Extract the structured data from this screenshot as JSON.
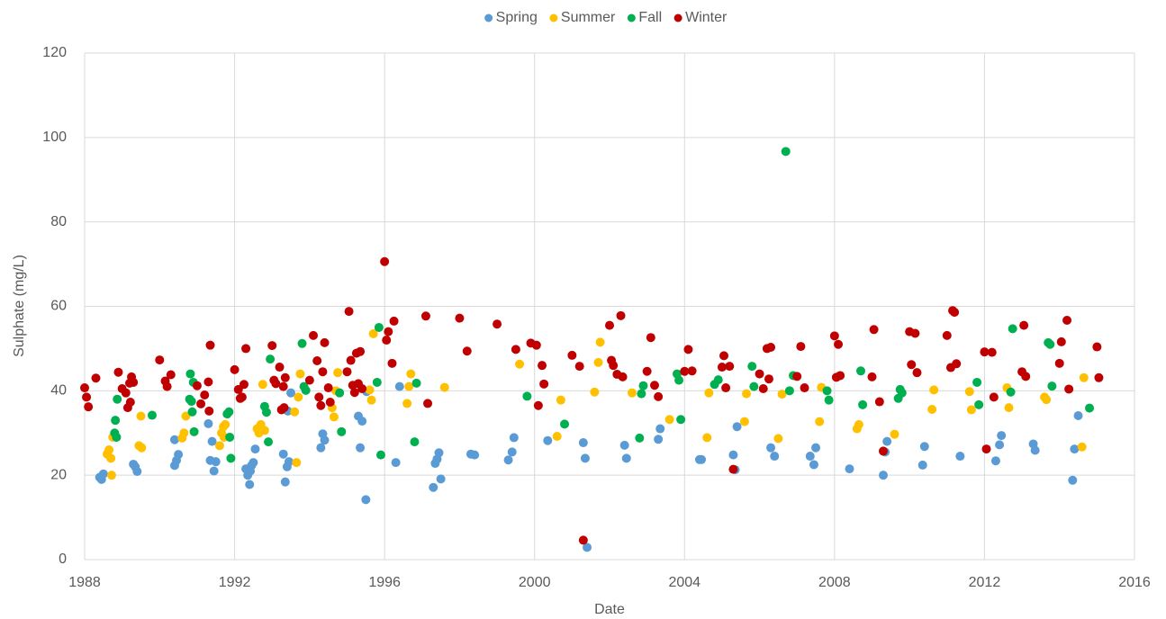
{
  "chart_data": {
    "type": "scatter",
    "x_label": "Date",
    "y_label": "Sulphate (mg/L)",
    "xlim": [
      1988,
      2016
    ],
    "xticks": [
      1988,
      1992,
      1996,
      2000,
      2004,
      2008,
      2012,
      2016
    ],
    "ylim": [
      0,
      120
    ],
    "yticks": [
      0,
      20,
      40,
      60,
      80,
      100,
      120
    ],
    "grid": true,
    "legend": "top",
    "series": [
      {
        "name": "Spring",
        "color": "#5b9bd5",
        "x": [
          1988.4,
          1988.5,
          1988.45,
          1989.3,
          1989.35,
          1989.4,
          1990.4,
          1990.4,
          1990.45,
          1990.5,
          1991.3,
          1991.35,
          1991.4,
          1991.45,
          1991.5,
          1992.3,
          1992.35,
          1992.4,
          1992.45,
          1992.5,
          1992.55,
          1992.42,
          1993.3,
          1993.35,
          1993.4,
          1993.45,
          1993.42,
          1993.5,
          1994.3,
          1994.35,
          1994.4,
          1995.3,
          1995.35,
          1995.4,
          1995.5,
          1995.52,
          1996.3,
          1996.4,
          1997.3,
          1997.35,
          1997.4,
          1997.45,
          1997.5,
          1998.3,
          1998.4,
          1999.3,
          1999.4,
          1999.45,
          2000.35,
          2001.3,
          2001.35,
          2001.4,
          2002.4,
          2002.45,
          2003.3,
          2003.35,
          2004.4,
          2004.45,
          2005.3,
          2005.35,
          2005.4,
          2006.3,
          2006.4,
          2007.35,
          2007.45,
          2007.5,
          2008.4,
          2009.3,
          2009.4,
          2009.35,
          2010.35,
          2010.4,
          2011.35,
          2012.3,
          2012.4,
          2012.45,
          2013.3,
          2013.35,
          2014.35,
          2014.4,
          2014.5
        ],
        "values": [
          19.5,
          20.3,
          19,
          22.6,
          22,
          20.9,
          28.4,
          22.3,
          23.5,
          24.9,
          32.2,
          23.5,
          28,
          21,
          23.2,
          21.5,
          20,
          17.8,
          22.3,
          23,
          26.2,
          21,
          25,
          18.4,
          22,
          23.2,
          35.2,
          39.5,
          26.5,
          29.8,
          28.3,
          34,
          26.5,
          32.8,
          14.2,
          39.8,
          23,
          41,
          17.1,
          22.8,
          23.8,
          25.3,
          19.1,
          25,
          24.8,
          23.6,
          25.5,
          28.9,
          28.2,
          27.7,
          24,
          2.9,
          27.1,
          24,
          28.5,
          31,
          23.7,
          23.7,
          24.8,
          21.3,
          31.5,
          26.5,
          24.5,
          24.5,
          22.5,
          26.5,
          21.5,
          20,
          28,
          25.5,
          22.4,
          26.8,
          24.5,
          23.4,
          27.2,
          29.4,
          27.4,
          25.9,
          18.8,
          26.2,
          34.1
        ]
      },
      {
        "name": "Summer",
        "color": "#ffc000",
        "x": [
          1988.6,
          1988.65,
          1988.7,
          1988.75,
          1988.72,
          1989.5,
          1989.45,
          1989.52,
          1990.6,
          1990.65,
          1990.7,
          1991.6,
          1991.65,
          1991.7,
          1991.75,
          1991.72,
          1992.6,
          1992.65,
          1992.7,
          1992.75,
          1992.8,
          1993.6,
          1993.65,
          1993.7,
          1993.75,
          1994.6,
          1994.65,
          1994.7,
          1994.75,
          1995.6,
          1995.65,
          1995.7,
          1996.6,
          1996.7,
          1996.65,
          1997.6,
          1999.6,
          2000.6,
          2000.7,
          2001.6,
          2001.7,
          2001.75,
          2002.6,
          2003.6,
          2004.6,
          2004.65,
          2005.6,
          2005.65,
          2006.6,
          2006.5,
          2007.6,
          2007.65,
          2008.6,
          2008.65,
          2009.6,
          2010.6,
          2010.65,
          2011.6,
          2011.65,
          2012.6,
          2012.65,
          2013.6,
          2013.65,
          2014.6,
          2014.65
        ],
        "values": [
          25,
          26,
          24,
          29,
          20,
          34,
          27,
          26.5,
          28.8,
          30,
          34,
          27,
          30,
          31.5,
          32,
          29,
          31,
          30,
          32,
          41.5,
          30.6,
          35,
          23,
          38.5,
          44,
          36,
          33.8,
          40,
          44.3,
          40.2,
          37.8,
          53.5,
          37,
          44,
          41,
          40.8,
          46.3,
          29.2,
          37.8,
          39.7,
          46.7,
          51.5,
          39.5,
          33.2,
          28.9,
          39.5,
          32.7,
          39.3,
          39.2,
          28.7,
          32.7,
          40.8,
          31,
          32,
          29.7,
          35.6,
          40.2,
          39.8,
          35.5,
          40.7,
          36,
          38.5,
          37.9,
          26.7,
          43.1
        ]
      },
      {
        "name": "Fall",
        "color": "#00b050",
        "x": [
          1988.8,
          1988.85,
          1988.82,
          1988.87,
          1989.8,
          1990.8,
          1990.85,
          1990.82,
          1990.9,
          1990.87,
          1990.92,
          1991.8,
          1991.85,
          1991.9,
          1991.87,
          1992.8,
          1992.85,
          1992.9,
          1992.95,
          1993.8,
          1993.85,
          1993.9,
          1994.8,
          1994.85,
          1995.8,
          1995.85,
          1995.9,
          1996.8,
          1996.85,
          1999.8,
          2000.8,
          2002.8,
          2002.85,
          2002.9,
          2003.8,
          2003.85,
          2003.9,
          2004.8,
          2004.9,
          2005.8,
          2005.85,
          2006.7,
          2006.8,
          2006.9,
          2007.8,
          2007.85,
          2008.7,
          2008.75,
          2009.7,
          2009.75,
          2009.8,
          2011.8,
          2011.85,
          2012.7,
          2012.75,
          2013.7,
          2013.75,
          2013.8,
          2014.8
        ],
        "values": [
          30,
          29,
          33,
          38,
          34.2,
          38,
          37.5,
          44,
          42,
          35,
          30.3,
          34.5,
          35,
          24,
          29,
          36.3,
          34.9,
          27.9,
          47.5,
          51.2,
          41,
          40.1,
          39.5,
          30.3,
          42,
          55,
          24.8,
          27.9,
          41.8,
          38.7,
          32.1,
          28.8,
          39.3,
          41.2,
          44,
          42.5,
          33.2,
          41.5,
          42.6,
          45.8,
          41,
          96.7,
          40,
          43.6,
          40,
          37.8,
          44.7,
          36.7,
          38.2,
          40.3,
          39.5,
          42,
          36.7,
          39.7,
          54.7,
          51.4,
          51,
          41.1,
          35.9
        ]
      },
      {
        "name": "Winter",
        "color": "#c00000",
        "x": [
          1988.0,
          1988.05,
          1988.1,
          1988.3,
          1988.9,
          1989.0,
          1989.1,
          1989.15,
          1989.2,
          1989.25,
          1989.3,
          1989.22,
          1990.0,
          1990.15,
          1990.2,
          1990.3,
          1991.0,
          1991.1,
          1991.2,
          1991.3,
          1991.35,
          1991.32,
          1992.0,
          1992.1,
          1992.15,
          1992.2,
          1992.25,
          1992.3,
          1993.0,
          1993.05,
          1993.1,
          1993.2,
          1993.25,
          1993.3,
          1993.35,
          1993.32,
          1994.0,
          1994.1,
          1994.2,
          1994.25,
          1994.3,
          1994.35,
          1994.4,
          1994.5,
          1994.55,
          1995.0,
          1995.05,
          1995.1,
          1995.15,
          1995.2,
          1995.25,
          1995.3,
          1995.35,
          1995.4,
          1996.0,
          1996.05,
          1996.1,
          1996.2,
          1996.25,
          1997.1,
          1997.15,
          1998.0,
          1998.2,
          1999.0,
          1999.5,
          1999.9,
          2000.05,
          2000.1,
          2000.2,
          2000.25,
          2001.0,
          2001.2,
          2001.3,
          2002.0,
          2002.05,
          2002.1,
          2002.2,
          2002.3,
          2002.35,
          2003.0,
          2003.1,
          2003.2,
          2003.3,
          2004.0,
          2004.1,
          2004.2,
          2005.0,
          2005.05,
          2005.1,
          2005.2,
          2005.3,
          2006.0,
          2006.1,
          2006.2,
          2006.25,
          2006.3,
          2007.0,
          2007.1,
          2007.2,
          2008.0,
          2008.05,
          2008.1,
          2008.15,
          2009.0,
          2009.05,
          2009.2,
          2009.3,
          2010.0,
          2010.05,
          2010.15,
          2010.2,
          2011.0,
          2011.1,
          2011.15,
          2011.2,
          2011.25,
          2012.0,
          2012.05,
          2012.2,
          2012.25,
          2013.0,
          2013.05,
          2013.1,
          2014.0,
          2014.05,
          2014.2,
          2014.25,
          2015.0,
          2015.05
        ],
        "values": [
          40.7,
          38.5,
          36.2,
          43,
          44.4,
          40.5,
          39.5,
          36,
          41.8,
          43.3,
          42,
          37.3,
          47.3,
          42.3,
          41,
          43.8,
          41.2,
          36.9,
          39,
          42.1,
          50.8,
          35.2,
          45,
          40.3,
          38.2,
          38.5,
          41.5,
          50,
          50.7,
          42.5,
          41.7,
          45.6,
          35.5,
          41,
          43.1,
          36,
          42.5,
          53.1,
          47.1,
          38.5,
          36.5,
          44.5,
          51.4,
          40.7,
          37.3,
          44.5,
          58.8,
          47.2,
          41.3,
          39.6,
          48.9,
          41.7,
          49.3,
          40.5,
          70.6,
          52,
          54,
          46.5,
          56.5,
          57.7,
          37,
          57.2,
          49.4,
          55.8,
          49.8,
          51.3,
          50.8,
          36.5,
          46,
          41.6,
          48.4,
          45.8,
          4.6,
          55.5,
          47.2,
          46,
          43.9,
          57.8,
          43.3,
          44.6,
          52.6,
          41.3,
          38.6,
          44.6,
          49.8,
          44.7,
          45.6,
          48.3,
          40.7,
          45.8,
          21.4,
          44,
          40.5,
          50,
          42.8,
          50.3,
          43.4,
          50.5,
          40.7,
          53,
          43.2,
          51,
          43.6,
          43.3,
          54.5,
          37.4,
          25.7,
          54,
          46.2,
          53.6,
          44.3,
          53.1,
          45.5,
          59,
          58.6,
          46.4,
          49.2,
          26.2,
          49.1,
          38.5,
          44.5,
          55.5,
          43.4,
          46.5,
          51.6,
          56.7,
          40.4,
          50.4,
          43.1
        ]
      }
    ]
  }
}
